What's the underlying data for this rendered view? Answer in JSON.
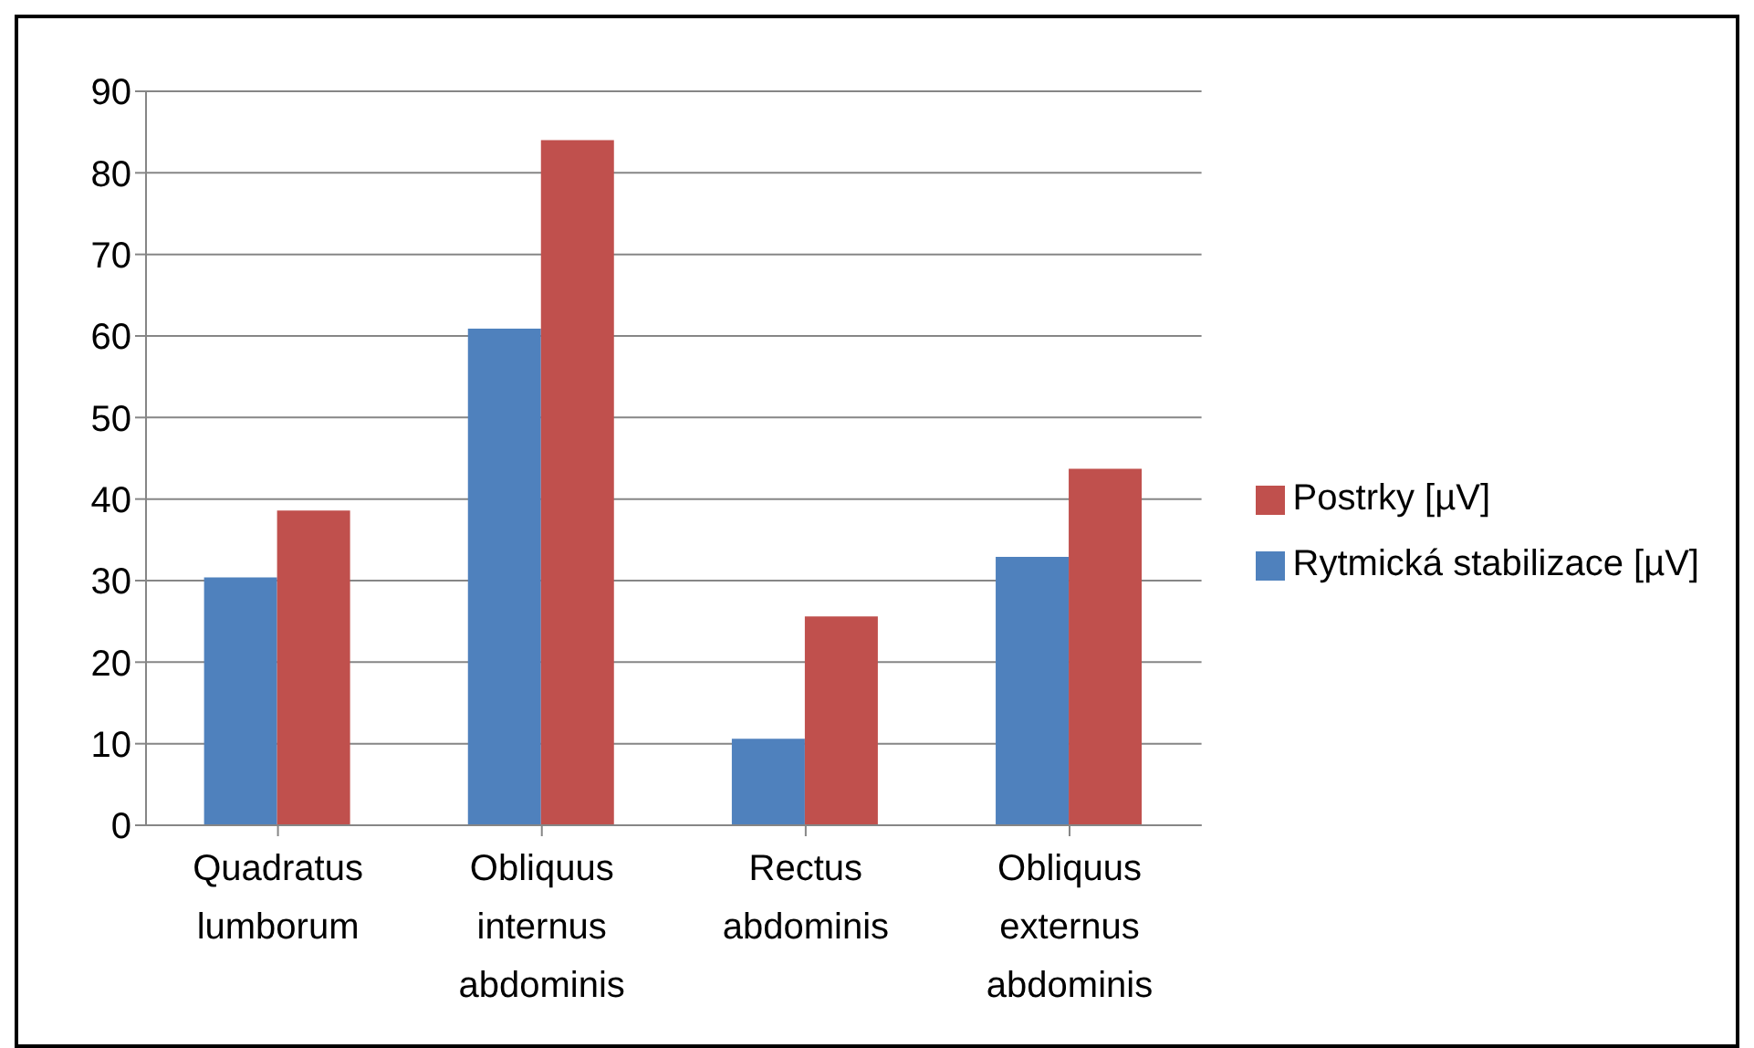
{
  "chart_data": {
    "type": "bar",
    "categories": [
      "Quadratus lumborum",
      "Obliquus internus abdominis",
      "Rectus abdominis",
      "Obliquus externus abdominis"
    ],
    "series": [
      {
        "name": "Rytmická stabilizace [µV]",
        "color": "#4f81bd",
        "values": [
          30.4,
          60.9,
          10.6,
          32.9
        ]
      },
      {
        "name": "Postrky [µV]",
        "color": "#c0504d",
        "values": [
          38.6,
          84,
          25.6,
          43.7
        ]
      }
    ],
    "ylim": [
      0,
      90
    ],
    "yticks": [
      0,
      10,
      20,
      30,
      40,
      50,
      60,
      70,
      80,
      90
    ],
    "grid": "y",
    "legend": "right"
  }
}
